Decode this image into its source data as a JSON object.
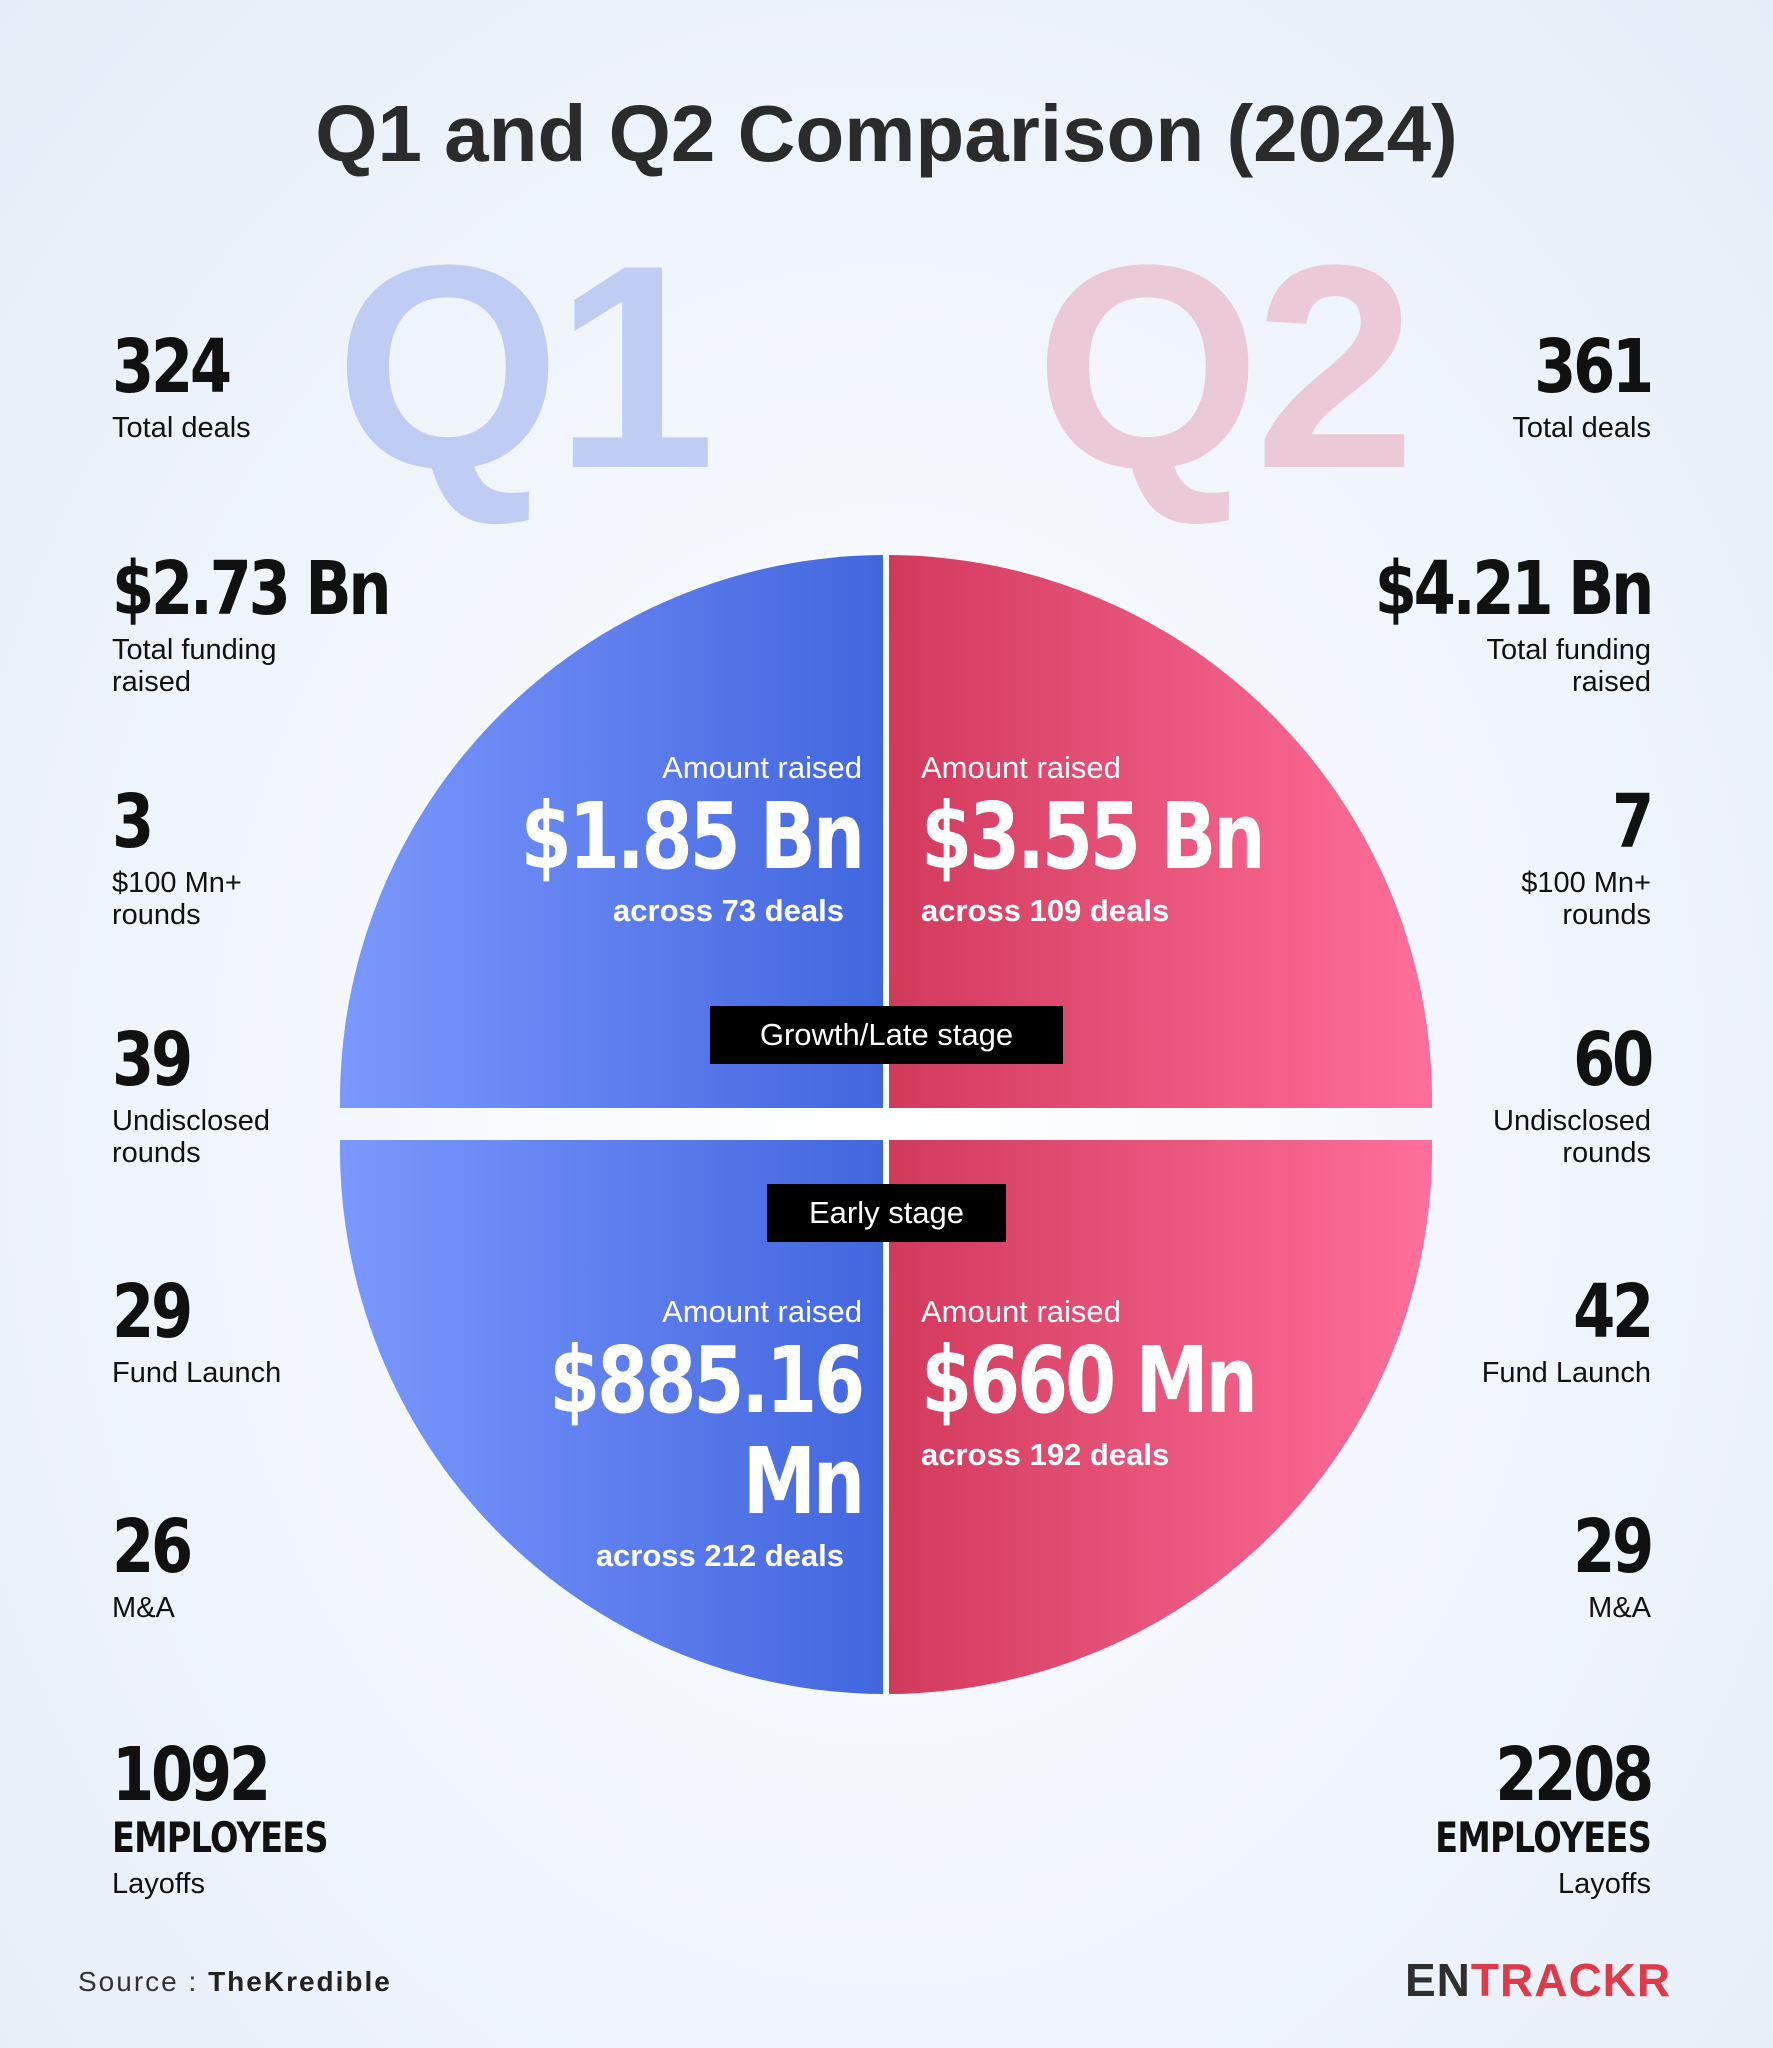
{
  "title": "Q1 and Q2 Comparison (2024)",
  "quarters": {
    "q1": "Q1",
    "q2": "Q2"
  },
  "colors": {
    "q1": "#5a7ff0",
    "q2": "#e8506d",
    "q1_watermark": "#bfcdf4",
    "q2_watermark": "#ebc9d6"
  },
  "q1_stats": {
    "total_deals": {
      "value": "324",
      "label": "Total deals"
    },
    "total_funding": {
      "value": "$2.73 Bn",
      "label": "Total funding raised"
    },
    "big_rounds": {
      "value": "3",
      "label": "$100 Mn+ rounds"
    },
    "undisclosed": {
      "value": "39",
      "label": "Undisclosed rounds"
    },
    "fund_launch": {
      "value": "29",
      "label": "Fund Launch"
    },
    "ma": {
      "value": "26",
      "label": "M&A"
    },
    "layoffs": {
      "value": "1092",
      "unit": "EMPLOYEES",
      "label": "Layoffs"
    }
  },
  "q2_stats": {
    "total_deals": {
      "value": "361",
      "label": "Total deals"
    },
    "total_funding": {
      "value": "$4.21 Bn",
      "label": "Total funding raised"
    },
    "big_rounds": {
      "value": "7",
      "label": "$100 Mn+ rounds"
    },
    "undisclosed": {
      "value": "60",
      "label": "Undisclosed rounds"
    },
    "fund_launch": {
      "value": "42",
      "label": "Fund Launch"
    },
    "ma": {
      "value": "29",
      "label": "M&A"
    },
    "layoffs": {
      "value": "2208",
      "unit": "EMPLOYEES",
      "label": "Layoffs"
    }
  },
  "stages": {
    "growth": {
      "label": "Growth/Late stage",
      "q1": {
        "caption": "Amount raised",
        "amount": "$1.85 Bn",
        "deals": "across 73 deals"
      },
      "q2": {
        "caption": "Amount raised",
        "amount": "$3.55 Bn",
        "deals": "across 109 deals"
      }
    },
    "early": {
      "label": "Early stage",
      "q1": {
        "caption": "Amount raised",
        "amount": "$885.16 Mn",
        "deals": "across 212 deals"
      },
      "q2": {
        "caption": "Amount raised",
        "amount": "$660 Mn",
        "deals": "across 192 deals"
      }
    }
  },
  "footer": {
    "source_prefix": "Source : ",
    "source_name": "TheKredible",
    "logo_part1": "EN",
    "logo_part2": "TRACKR"
  }
}
